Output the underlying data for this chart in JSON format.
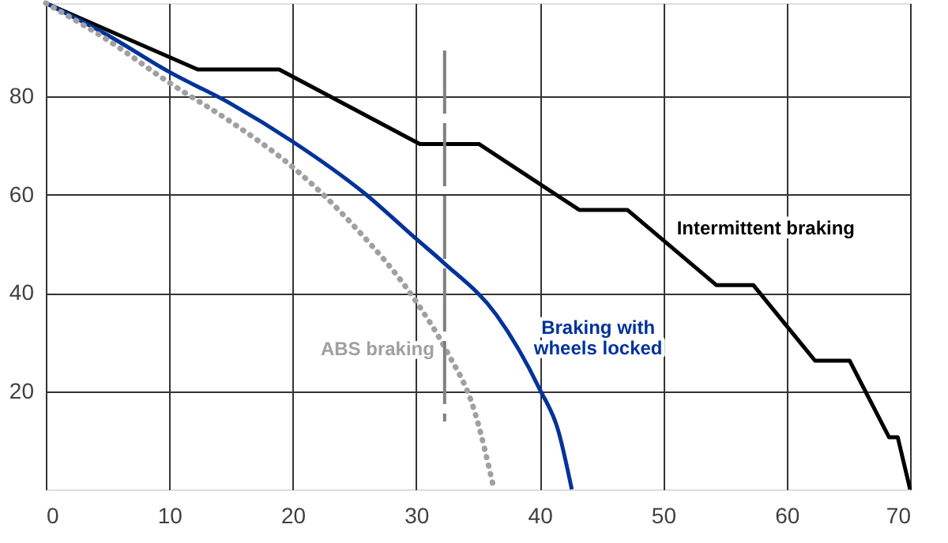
{
  "chart_data": {
    "type": "line",
    "xlim": [
      0,
      70
    ],
    "ylim": [
      0,
      99
    ],
    "xticks": [
      0,
      10,
      20,
      30,
      40,
      50,
      60,
      70
    ],
    "yticks": [
      20,
      40,
      60,
      80
    ],
    "grid": true,
    "legend": false,
    "marker": "none",
    "series": [
      {
        "name": "Intermittent braking",
        "color": "#000000",
        "line_style": "solid",
        "x": [
          0,
          12.3,
          18.9,
          30.3,
          35.1,
          43.2,
          47.1,
          54.3,
          57.3,
          62.3,
          65.1,
          68.3,
          69,
          70
        ],
        "values": [
          99,
          85.5,
          85.5,
          70.3,
          70.3,
          56.9,
          56.9,
          41.6,
          41.6,
          26.2,
          26.2,
          10.6,
          10.6,
          0
        ]
      },
      {
        "name": "Braking with\nwheels locked",
        "color": "#003399",
        "line_style": "solid",
        "x": [
          0,
          5,
          10,
          15,
          20,
          25.8,
          30,
          32.2,
          36.5,
          40,
          41.5,
          42.6
        ],
        "values": [
          99,
          92.5,
          85,
          78.5,
          70.8,
          60.3,
          51,
          46.2,
          35.5,
          20.4,
          12,
          0
        ]
      },
      {
        "name": "ABS braking",
        "color": "#a0a0a0",
        "line_style": "dotted",
        "x": [
          0,
          5,
          10,
          15,
          20,
          25,
          30,
          32.5,
          34.7,
          36.3
        ],
        "values": [
          99,
          91.5,
          82.8,
          74.8,
          65.6,
          53.5,
          38.2,
          28,
          16.1,
          0
        ]
      }
    ],
    "ref_lines": [
      {
        "axis": "x",
        "value": 32.3,
        "color": "#808080",
        "line_style": "dashed"
      }
    ]
  }
}
